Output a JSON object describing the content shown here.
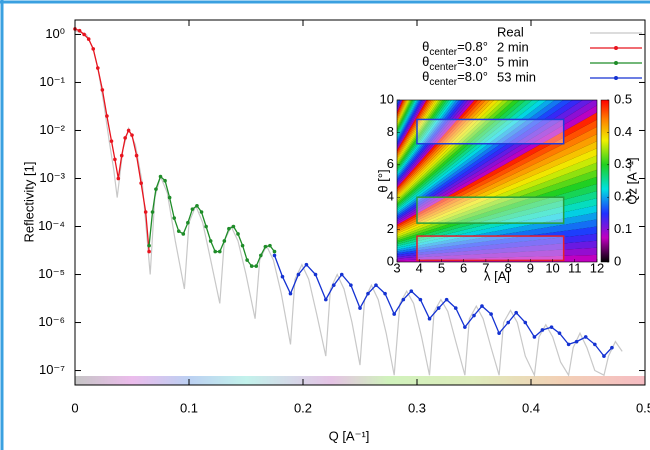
{
  "chart_data": {
    "type": "line",
    "xlabel": "Q [A⁻¹]",
    "ylabel": "Reflectivity [1]",
    "log_y": true,
    "xlim": [
      0,
      0.5
    ],
    "xticks": [
      0,
      0.1,
      0.2,
      0.3,
      0.4,
      0.5
    ],
    "ylim": [
      5e-08,
      2
    ],
    "yticks": [
      {
        "value": 1,
        "label": "10⁰"
      },
      {
        "value": 0.1,
        "label": "10⁻¹"
      },
      {
        "value": 0.01,
        "label": "10⁻²"
      },
      {
        "value": 0.001,
        "label": "10⁻³"
      },
      {
        "value": 0.0001,
        "label": "10⁻⁴"
      },
      {
        "value": 1e-05,
        "label": "10⁻⁵"
      },
      {
        "value": 1e-06,
        "label": "10⁻⁶"
      },
      {
        "value": 1e-07,
        "label": "10⁻⁷"
      }
    ],
    "legend_position": "upper right",
    "series": [
      {
        "name": "Real",
        "color": "#c8c8c8",
        "markers": false,
        "x": [
          0,
          0.01,
          0.016,
          0.02,
          0.025,
          0.03,
          0.034,
          0.037,
          0.042,
          0.047,
          0.053,
          0.059,
          0.066,
          0.07,
          0.075,
          0.081,
          0.088,
          0.096,
          0.1,
          0.106,
          0.112,
          0.119,
          0.127,
          0.131,
          0.137,
          0.143,
          0.15,
          0.158,
          0.162,
          0.168,
          0.174,
          0.181,
          0.189,
          0.193,
          0.199,
          0.205,
          0.212,
          0.22,
          0.224,
          0.23,
          0.236,
          0.243,
          0.25,
          0.254,
          0.26,
          0.266,
          0.273,
          0.28,
          0.285,
          0.291,
          0.297,
          0.304,
          0.311,
          0.315,
          0.321,
          0.327,
          0.334,
          0.342,
          0.346,
          0.352,
          0.358,
          0.365,
          0.372,
          0.376,
          0.382,
          0.388,
          0.395,
          0.403,
          0.407,
          0.413,
          0.419,
          0.426,
          0.433,
          0.437,
          0.443,
          0.449,
          0.456,
          0.464,
          0.468,
          0.474,
          0.48
        ],
        "values": [
          1.2,
          1.0,
          0.5,
          0.2,
          0.04,
          0.006,
          0.0015,
          0.0004,
          0.004,
          0.011,
          0.005,
          0.0008,
          1e-05,
          0.0004,
          0.0011,
          0.0005,
          5e-05,
          5e-06,
          0.00012,
          0.00027,
          0.00012,
          2e-05,
          2.5e-06,
          5e-05,
          0.0001,
          5e-05,
          1e-05,
          1.2e-06,
          2e-05,
          4e-05,
          2e-05,
          4e-06,
          3.5e-07,
          8e-06,
          1.6e-05,
          8e-06,
          1.5e-06,
          2e-07,
          5e-06,
          1e-05,
          5e-06,
          1e-06,
          1.3e-07,
          3e-06,
          6e-06,
          3e-06,
          6e-07,
          8e-08,
          2.5e-06,
          4.5e-06,
          2.5e-06,
          5e-07,
          8e-08,
          1.7e-06,
          3e-06,
          1.7e-06,
          4e-07,
          8e-08,
          1.2e-06,
          2.2e-06,
          1.2e-06,
          3e-07,
          8e-08,
          1e-06,
          1.8e-06,
          1e-06,
          2e-07,
          8e-08,
          5e-07,
          9e-07,
          5e-07,
          1.5e-07,
          8e-08,
          3e-07,
          6e-07,
          3e-07,
          1e-07,
          8e-08,
          2e-07,
          4e-07,
          2.5e-07
        ]
      },
      {
        "name": "2 min",
        "color": "#e8141e",
        "markers": true,
        "label_symbol": "θ",
        "label_sub": "center",
        "label_rest": "=0.8°",
        "x": [
          0,
          0.004,
          0.008,
          0.012,
          0.016,
          0.02,
          0.024,
          0.028,
          0.032,
          0.035,
          0.038,
          0.041,
          0.044,
          0.047,
          0.05,
          0.054,
          0.058,
          0.062,
          0.065
        ],
        "values": [
          1.3,
          1.2,
          1.0,
          0.8,
          0.5,
          0.2,
          0.07,
          0.02,
          0.006,
          0.0025,
          0.001,
          0.003,
          0.007,
          0.01,
          0.008,
          0.003,
          0.0008,
          0.0002,
          3e-05
        ]
      },
      {
        "name": "5 min",
        "color": "#1e8c28",
        "markers": true,
        "label_symbol": "θ",
        "label_sub": "center",
        "label_rest": "=3.0°",
        "x": [
          0.065,
          0.068,
          0.071,
          0.075,
          0.079,
          0.083,
          0.087,
          0.091,
          0.095,
          0.099,
          0.103,
          0.107,
          0.111,
          0.115,
          0.119,
          0.123,
          0.127,
          0.131,
          0.135,
          0.139,
          0.143,
          0.147,
          0.151,
          0.155,
          0.159,
          0.163,
          0.167,
          0.171,
          0.175
        ],
        "values": [
          4e-05,
          0.0002,
          0.0006,
          0.0011,
          0.0009,
          0.0004,
          0.00015,
          8e-05,
          7e-05,
          0.00012,
          0.00023,
          0.00027,
          0.0002,
          0.0001,
          5e-05,
          3e-05,
          3e-05,
          5e-05,
          9e-05,
          0.0001,
          7e-05,
          4e-05,
          2e-05,
          1.5e-05,
          1.5e-05,
          2.5e-05,
          3.8e-05,
          4e-05,
          3e-05
        ]
      },
      {
        "name": "53 min",
        "color": "#1432d2",
        "markers": true,
        "label_symbol": "θ",
        "label_sub": "center",
        "label_rest": "=8.0°",
        "x": [
          0.175,
          0.182,
          0.189,
          0.196,
          0.203,
          0.211,
          0.22,
          0.227,
          0.234,
          0.242,
          0.25,
          0.257,
          0.264,
          0.272,
          0.28,
          0.288,
          0.295,
          0.303,
          0.311,
          0.319,
          0.326,
          0.334,
          0.342,
          0.35,
          0.357,
          0.365,
          0.372,
          0.38,
          0.387,
          0.395,
          0.403,
          0.41,
          0.418,
          0.425,
          0.433,
          0.44,
          0.448,
          0.456,
          0.464,
          0.471
        ],
        "values": [
          2.5e-05,
          9e-06,
          4e-06,
          1e-05,
          1.6e-05,
          1e-05,
          3e-06,
          6e-06,
          1e-05,
          6e-06,
          2e-06,
          4e-06,
          6e-06,
          4e-06,
          1.5e-06,
          3e-06,
          4.5e-06,
          3e-06,
          1.2e-06,
          2e-06,
          3e-06,
          2e-06,
          8e-07,
          1.4e-06,
          2.2e-06,
          1.5e-06,
          6e-07,
          1e-06,
          1.6e-06,
          1e-06,
          5e-07,
          7e-07,
          8e-07,
          6e-07,
          3.5e-07,
          4e-07,
          5e-07,
          3.5e-07,
          2e-07,
          3e-07
        ]
      }
    ],
    "inset": {
      "xlabel": "λ [A]",
      "ylabel": "θ [°]",
      "colorbar_label": "Qz [A⁻¹]",
      "xlim": [
        3,
        12
      ],
      "xticks": [
        3,
        4,
        5,
        6,
        7,
        8,
        9,
        10,
        11,
        12
      ],
      "ylim": [
        0,
        10
      ],
      "yticks": [
        0,
        2,
        4,
        6,
        8,
        10
      ],
      "clim": [
        0,
        0.5
      ],
      "cticks": [
        0,
        0.1,
        0.2,
        0.3,
        0.4,
        0.5
      ],
      "regions": [
        {
          "color": "#1e3cdc",
          "x": [
            3.9,
            10.5
          ],
          "y": [
            7.3,
            8.8
          ]
        },
        {
          "color": "#28a03c",
          "x": [
            3.9,
            10.5
          ],
          "y": [
            2.4,
            4.0
          ]
        },
        {
          "color": "#e61e28",
          "x": [
            3.9,
            10.5
          ],
          "y": [
            0.1,
            1.6
          ]
        }
      ]
    }
  }
}
